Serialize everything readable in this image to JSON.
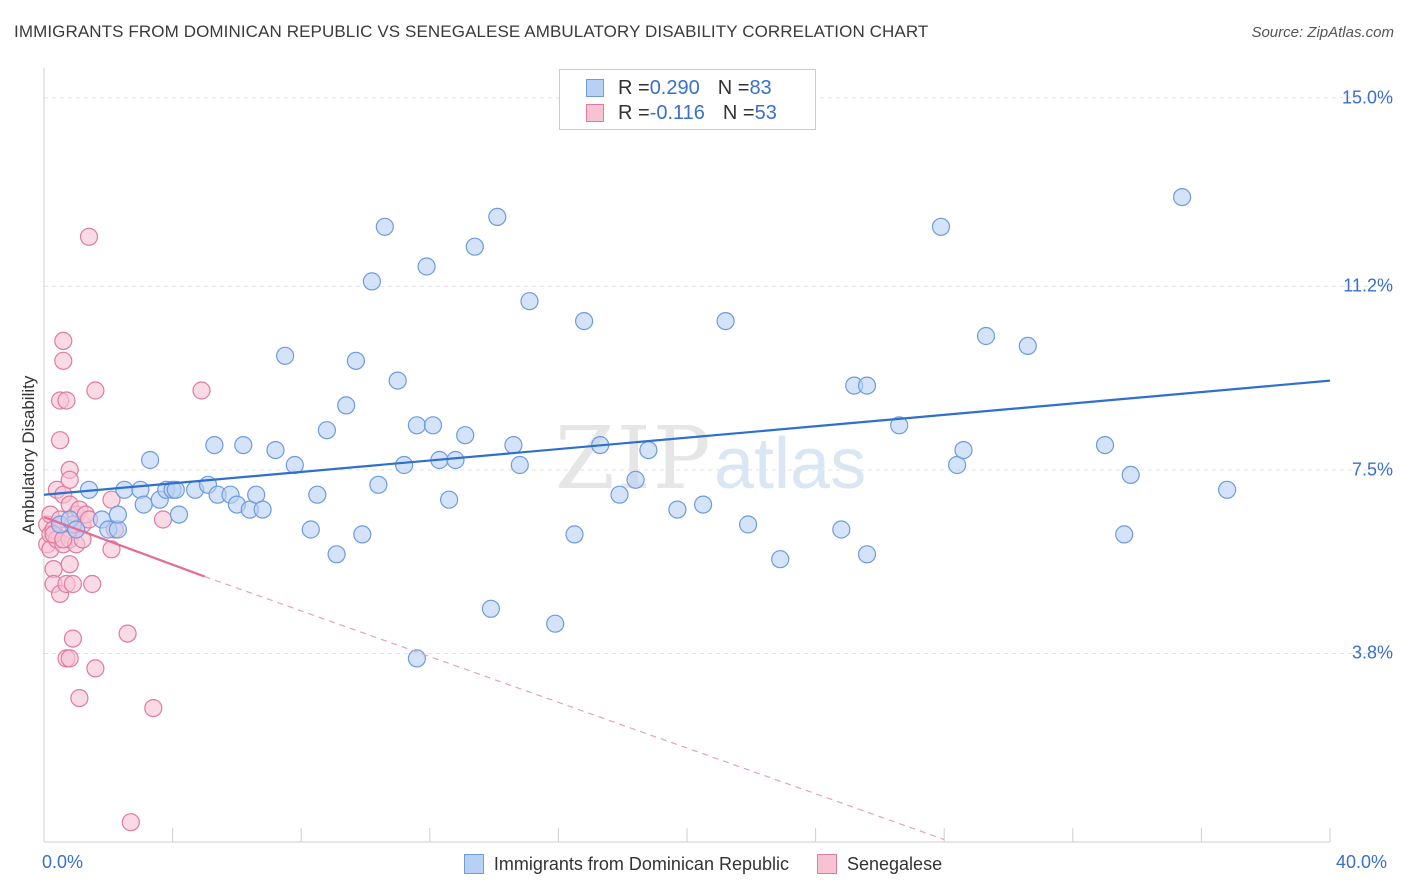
{
  "title": "IMMIGRANTS FROM DOMINICAN REPUBLIC VS SENEGALESE AMBULATORY DISABILITY CORRELATION CHART",
  "source": "Source: ZipAtlas.com",
  "watermark": {
    "zip": "ZIP",
    "atlas": "atlas"
  },
  "legend_top": {
    "rows": [
      {
        "r_label": "R = ",
        "r_value": "0.290",
        "n_label": "N = ",
        "n_value": "83",
        "color": "#a9c6ef"
      },
      {
        "r_label": "R = ",
        "r_value": "-0.116",
        "n_label": "N = ",
        "n_value": "53",
        "color": "#f4b8cb"
      }
    ]
  },
  "chart_data": {
    "type": "scatter",
    "title": "IMMIGRANTS FROM DOMINICAN REPUBLIC VS SENEGALESE AMBULATORY DISABILITY CORRELATION CHART",
    "xlabel": "",
    "ylabel": "Ambulatory Disability",
    "xlim": [
      0,
      40
    ],
    "ylim": [
      0,
      15.4
    ],
    "x_tick_labels": [
      "0.0%",
      "40.0%"
    ],
    "y_ticks": [
      3.8,
      7.5,
      11.2,
      15.0
    ],
    "y_tick_labels": [
      "3.8%",
      "7.5%",
      "11.2%",
      "15.0%"
    ],
    "grid": true,
    "legend_position": "bottom",
    "series": [
      {
        "name": "Immigrants from Dominican Republic",
        "color": "#6d9be0",
        "fill": "#b7d0f3",
        "trend": {
          "x": [
            0,
            40
          ],
          "y": [
            7.0,
            9.3
          ],
          "style": "solid"
        },
        "points": [
          [
            0.5,
            6.4
          ],
          [
            0.8,
            6.5
          ],
          [
            1.0,
            6.3
          ],
          [
            1.4,
            7.1
          ],
          [
            1.8,
            6.5
          ],
          [
            2.0,
            6.3
          ],
          [
            2.3,
            6.3
          ],
          [
            2.3,
            6.6
          ],
          [
            2.5,
            7.1
          ],
          [
            3.0,
            7.1
          ],
          [
            3.1,
            6.8
          ],
          [
            3.3,
            7.7
          ],
          [
            3.6,
            6.9
          ],
          [
            3.8,
            7.1
          ],
          [
            4.0,
            7.1
          ],
          [
            4.1,
            7.1
          ],
          [
            4.2,
            6.6
          ],
          [
            4.7,
            7.1
          ],
          [
            5.1,
            7.2
          ],
          [
            5.3,
            8.0
          ],
          [
            5.4,
            7.0
          ],
          [
            5.8,
            7.0
          ],
          [
            6.0,
            6.8
          ],
          [
            6.2,
            8.0
          ],
          [
            6.4,
            6.7
          ],
          [
            6.6,
            7.0
          ],
          [
            6.8,
            6.7
          ],
          [
            7.2,
            7.9
          ],
          [
            7.5,
            9.8
          ],
          [
            7.8,
            7.6
          ],
          [
            8.3,
            6.3
          ],
          [
            8.5,
            7.0
          ],
          [
            8.8,
            8.3
          ],
          [
            9.1,
            5.8
          ],
          [
            9.4,
            8.8
          ],
          [
            9.7,
            9.7
          ],
          [
            9.9,
            6.2
          ],
          [
            10.2,
            11.3
          ],
          [
            10.4,
            7.2
          ],
          [
            10.6,
            12.4
          ],
          [
            11.0,
            9.3
          ],
          [
            11.2,
            7.6
          ],
          [
            11.6,
            8.4
          ],
          [
            11.6,
            3.7
          ],
          [
            11.9,
            11.6
          ],
          [
            12.1,
            8.4
          ],
          [
            12.3,
            7.7
          ],
          [
            12.6,
            6.9
          ],
          [
            12.8,
            7.7
          ],
          [
            13.1,
            8.2
          ],
          [
            13.4,
            12.0
          ],
          [
            13.9,
            4.7
          ],
          [
            14.1,
            12.6
          ],
          [
            14.6,
            8.0
          ],
          [
            14.8,
            7.6
          ],
          [
            15.1,
            10.9
          ],
          [
            15.9,
            4.4
          ],
          [
            16.5,
            6.2
          ],
          [
            16.8,
            10.5
          ],
          [
            17.3,
            8.0
          ],
          [
            17.9,
            7.0
          ],
          [
            18.4,
            7.3
          ],
          [
            18.8,
            7.9
          ],
          [
            19.7,
            6.7
          ],
          [
            20.5,
            6.8
          ],
          [
            21.2,
            10.5
          ],
          [
            21.9,
            6.4
          ],
          [
            22.9,
            5.7
          ],
          [
            24.8,
            6.3
          ],
          [
            25.2,
            9.2
          ],
          [
            25.6,
            9.2
          ],
          [
            25.6,
            5.8
          ],
          [
            26.6,
            8.4
          ],
          [
            27.9,
            12.4
          ],
          [
            28.4,
            7.6
          ],
          [
            28.6,
            7.9
          ],
          [
            29.3,
            10.2
          ],
          [
            30.6,
            10.0
          ],
          [
            33.0,
            8.0
          ],
          [
            33.6,
            6.2
          ],
          [
            33.8,
            7.4
          ],
          [
            35.4,
            13.0
          ],
          [
            36.8,
            7.1
          ]
        ]
      },
      {
        "name": "Senegalese",
        "color": "#e07aa0",
        "fill": "#f6c3d3",
        "trend": {
          "x": [
            0,
            5.0
          ],
          "y": [
            6.55,
            5.35
          ],
          "style": "solid"
        },
        "trend_extension": {
          "x": [
            5.0,
            28.0
          ],
          "y": [
            5.35,
            0.05
          ],
          "style": "dashed"
        },
        "points": [
          [
            0.1,
            6.0
          ],
          [
            0.1,
            6.4
          ],
          [
            0.2,
            6.2
          ],
          [
            0.2,
            6.6
          ],
          [
            0.2,
            5.9
          ],
          [
            0.3,
            6.3
          ],
          [
            0.3,
            5.5
          ],
          [
            0.3,
            5.2
          ],
          [
            0.4,
            6.1
          ],
          [
            0.4,
            7.1
          ],
          [
            0.5,
            6.5
          ],
          [
            0.5,
            8.9
          ],
          [
            0.5,
            8.1
          ],
          [
            0.5,
            5.0
          ],
          [
            0.6,
            10.1
          ],
          [
            0.6,
            9.7
          ],
          [
            0.6,
            7.0
          ],
          [
            0.6,
            6.0
          ],
          [
            0.7,
            8.9
          ],
          [
            0.7,
            5.2
          ],
          [
            0.7,
            3.7
          ],
          [
            0.8,
            7.5
          ],
          [
            0.8,
            7.3
          ],
          [
            0.8,
            6.8
          ],
          [
            0.8,
            6.1
          ],
          [
            0.8,
            5.6
          ],
          [
            0.8,
            3.7
          ],
          [
            0.9,
            5.2
          ],
          [
            0.9,
            4.1
          ],
          [
            1.0,
            6.6
          ],
          [
            1.0,
            6.0
          ],
          [
            1.0,
            6.3
          ],
          [
            1.1,
            6.7
          ],
          [
            1.1,
            2.9
          ],
          [
            1.2,
            6.4
          ],
          [
            1.3,
            6.6
          ],
          [
            1.4,
            12.2
          ],
          [
            1.4,
            6.5
          ],
          [
            1.5,
            5.2
          ],
          [
            1.6,
            9.1
          ],
          [
            1.6,
            3.5
          ],
          [
            2.1,
            6.9
          ],
          [
            2.1,
            5.9
          ],
          [
            2.2,
            6.3
          ],
          [
            2.6,
            4.2
          ],
          [
            2.7,
            0.4
          ],
          [
            3.4,
            2.7
          ],
          [
            3.7,
            6.5
          ],
          [
            4.9,
            9.1
          ],
          [
            0.3,
            6.2
          ],
          [
            0.6,
            6.1
          ],
          [
            1.2,
            6.1
          ],
          [
            0.9,
            6.4
          ]
        ]
      }
    ]
  }
}
